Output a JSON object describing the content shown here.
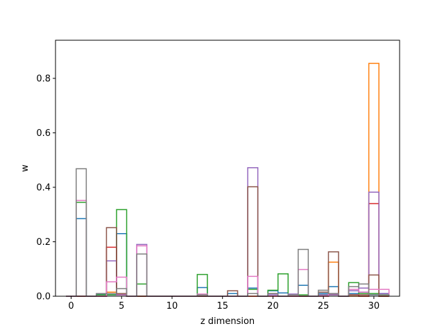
{
  "chart_data": {
    "type": "bar",
    "style": "step-histogram-outline",
    "xlabel": "z dimension",
    "ylabel": "w",
    "xlim": [
      -1.55,
      32.55
    ],
    "ylim": [
      0,
      0.94
    ],
    "x_ticks": [
      0,
      5,
      10,
      15,
      20,
      25,
      30
    ],
    "x_tick_labels": [
      "0",
      "5",
      "10",
      "15",
      "20",
      "25",
      "30"
    ],
    "y_ticks": [
      0.0,
      0.2,
      0.4,
      0.6,
      0.8
    ],
    "y_tick_labels": [
      "0.0",
      "0.2",
      "0.4",
      "0.6",
      "0.8"
    ],
    "categories": [
      0,
      1,
      2,
      3,
      4,
      5,
      6,
      7,
      8,
      9,
      10,
      11,
      12,
      13,
      14,
      15,
      16,
      17,
      18,
      19,
      20,
      21,
      22,
      23,
      24,
      25,
      26,
      27,
      28,
      29,
      30,
      31
    ],
    "series": [
      {
        "color": "#1f77b4",
        "values": [
          0,
          0.285,
          0,
          0.008,
          0.005,
          0.23,
          0,
          0,
          0,
          0,
          0,
          0,
          0,
          0.032,
          0,
          0,
          0.01,
          0,
          0.03,
          0,
          0.02,
          0.012,
          0,
          0.04,
          0,
          0.01,
          0.035,
          0,
          0.01,
          0.015,
          0.005,
          0.01
        ]
      },
      {
        "color": "#ff7f0e",
        "values": [
          0,
          0,
          0,
          0,
          0.015,
          0.005,
          0,
          0,
          0,
          0,
          0,
          0,
          0,
          0,
          0,
          0,
          0,
          0,
          0,
          0,
          0,
          0,
          0,
          0,
          0,
          0,
          0.125,
          0,
          0,
          0,
          0.855,
          0
        ]
      },
      {
        "color": "#2ca02c",
        "values": [
          0,
          0.345,
          0,
          0.005,
          0.005,
          0.318,
          0,
          0.045,
          0,
          0,
          0,
          0,
          0,
          0.08,
          0,
          0,
          0,
          0,
          0.025,
          0,
          0.022,
          0.082,
          0,
          0.005,
          0,
          0.005,
          0.005,
          0,
          0.05,
          0.01,
          0.01,
          0.005
        ]
      },
      {
        "color": "#d62728",
        "values": [
          0,
          0,
          0,
          0,
          0.18,
          0.005,
          0,
          0,
          0,
          0,
          0,
          0,
          0,
          0,
          0,
          0,
          0,
          0,
          0,
          0,
          0,
          0,
          0,
          0,
          0,
          0,
          0.005,
          0,
          0.005,
          0,
          0.34,
          0
        ]
      },
      {
        "color": "#9467bd",
        "values": [
          0,
          0,
          0,
          0,
          0.13,
          0.005,
          0,
          0.19,
          0,
          0,
          0,
          0,
          0,
          0,
          0,
          0,
          0,
          0,
          0.472,
          0,
          0.005,
          0,
          0.008,
          0,
          0,
          0.005,
          0.005,
          0,
          0.02,
          0.03,
          0.382,
          0.01
        ]
      },
      {
        "color": "#8c564b",
        "values": [
          0,
          0,
          0,
          0,
          0.252,
          0.01,
          0,
          0,
          0,
          0,
          0,
          0,
          0,
          0,
          0,
          0,
          0.02,
          0,
          0.402,
          0,
          0.01,
          0,
          0,
          0,
          0,
          0.015,
          0.163,
          0,
          0.005,
          0.005,
          0.078,
          0
        ]
      },
      {
        "color": "#e377c2",
        "values": [
          0,
          0.352,
          0,
          0,
          0.053,
          0.07,
          0,
          0.185,
          0,
          0,
          0,
          0,
          0,
          0.008,
          0,
          0,
          0,
          0,
          0.073,
          0,
          0,
          0,
          0,
          0.098,
          0,
          0,
          0.01,
          0,
          0.025,
          0.015,
          0.025,
          0.025
        ]
      },
      {
        "color": "#7f7f7f",
        "values": [
          0,
          0.468,
          0,
          0.01,
          0.01,
          0.028,
          0,
          0.155,
          0,
          0,
          0,
          0,
          0,
          0.005,
          0,
          0,
          0,
          0,
          0.01,
          0,
          0.01,
          0,
          0.005,
          0.172,
          0,
          0.022,
          0.01,
          0,
          0.035,
          0.045,
          0.005,
          0.005
        ]
      }
    ],
    "grid": false,
    "legend": "none"
  }
}
